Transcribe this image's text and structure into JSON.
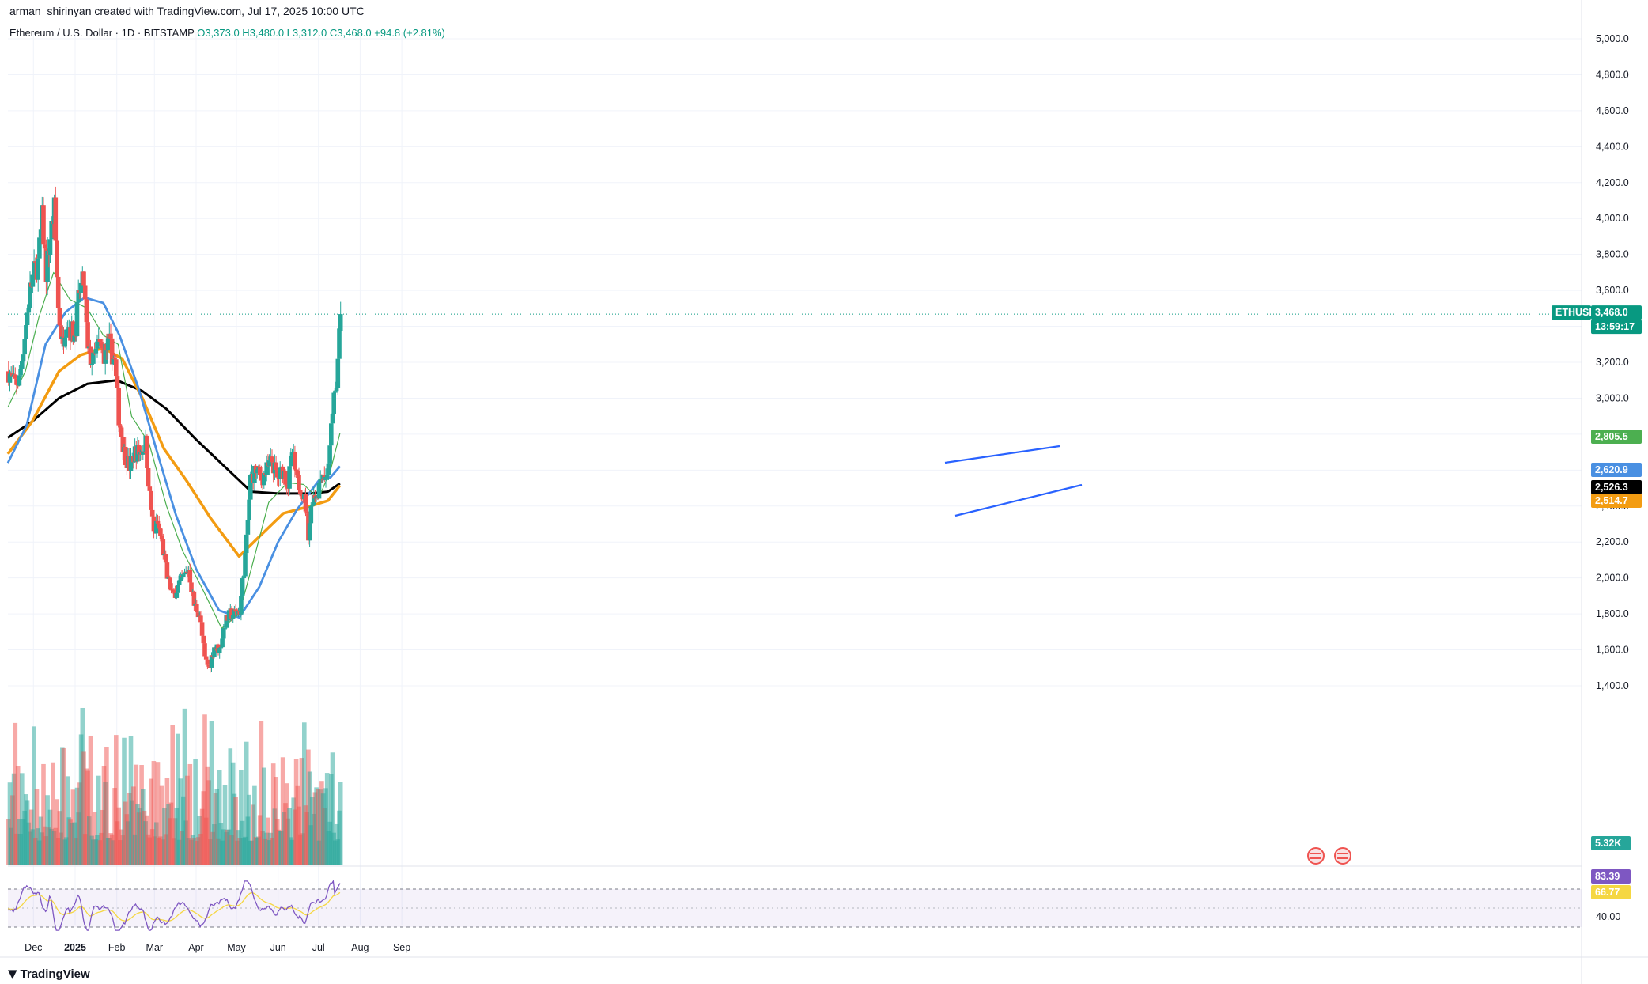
{
  "header": {
    "credit": "arman_shirinyan created with TradingView.com, Jul 17, 2025 10:00 UTC"
  },
  "legend": {
    "symbol": "Ethereum / U.S. Dollar · 1D · BITSTAMP",
    "ohlc": "O3,373.0  H3,480.0  L3,312.0  C3,468.0  +94.8 (+2.81%)"
  },
  "footer": {
    "logo_text": "TradingView"
  },
  "colors": {
    "up": "#26a69a",
    "down": "#ef5350",
    "ma_fast": "#4caf50",
    "ma_mid": "#4a90e2",
    "ma_slow": "#f39c12",
    "ma_long": "#000000",
    "rsi": "#7e57c2",
    "rsi_ma": "#f5d742"
  },
  "chart_data": {
    "type": "candlestick",
    "symbol": "ETHUSD",
    "y_ticks": [
      1400,
      1600,
      1800,
      2000,
      2200,
      2400,
      2600,
      2800,
      3000,
      3200,
      3400,
      3600,
      3800,
      4000,
      4200,
      4400,
      4600,
      4800,
      5000
    ],
    "y_tick_labels": [
      "1,400.0",
      "1,600.0",
      "1,800.0",
      "2,000.0",
      "2,200.0",
      "2,400.0",
      "2,600.0",
      "2,800.0",
      "3,000.0",
      "3,200.0",
      "3,400.0",
      "3,600.0",
      "3,800.0",
      "4,000.0",
      "4,200.0",
      "4,400.0",
      "4,600.0",
      "4,800.0",
      "5,000.0"
    ],
    "y_range": [
      1400,
      5000
    ],
    "x_labels": [
      "Dec",
      "2025",
      "Feb",
      "Mar",
      "Apr",
      "May",
      "Jun",
      "Jul",
      "Aug",
      "Sep"
    ],
    "current_price": {
      "symbol": "ETHUSD",
      "value": "3,468.0",
      "countdown": "13:59:17"
    },
    "ma_values": [
      {
        "label": "2,805.5",
        "value": 2805.5,
        "color": "#4caf50"
      },
      {
        "label": "2,620.9",
        "value": 2620.9,
        "color": "#4a90e2"
      },
      {
        "label": "2,526.3",
        "value": 2526.3,
        "color": "#000000"
      },
      {
        "label": "2,514.7",
        "value": 2514.7,
        "color": "#f39c12"
      }
    ],
    "volume_label": "5.32K",
    "rsi": {
      "value": "83.39",
      "ma_value": "66.77",
      "tick_label": "40.00",
      "upper": 70,
      "lower": 30
    },
    "price_path": [
      [
        "2024-11-12",
        3150
      ],
      [
        "2024-11-16",
        3080
      ],
      [
        "2024-11-20",
        3100
      ],
      [
        "2024-11-24",
        3350
      ],
      [
        "2024-11-28",
        3600
      ],
      [
        "2024-12-01",
        3700
      ],
      [
        "2024-12-04",
        3750
      ],
      [
        "2024-12-07",
        4000
      ],
      [
        "2024-12-10",
        3700
      ],
      [
        "2024-12-13",
        3900
      ],
      [
        "2024-12-16",
        4050
      ],
      [
        "2024-12-19",
        3500
      ],
      [
        "2024-12-22",
        3300
      ],
      [
        "2024-12-25",
        3450
      ],
      [
        "2024-12-28",
        3380
      ],
      [
        "2024-12-31",
        3350
      ],
      [
        "2025-01-04",
        3600
      ],
      [
        "2025-01-07",
        3650
      ],
      [
        "2025-01-10",
        3250
      ],
      [
        "2025-01-14",
        3200
      ],
      [
        "2025-01-18",
        3300
      ],
      [
        "2025-01-22",
        3250
      ],
      [
        "2025-01-26",
        3300
      ],
      [
        "2025-01-30",
        3200
      ],
      [
        "2025-02-02",
        2900
      ],
      [
        "2025-02-06",
        2700
      ],
      [
        "2025-02-10",
        2620
      ],
      [
        "2025-02-14",
        2700
      ],
      [
        "2025-02-18",
        2700
      ],
      [
        "2025-02-22",
        2750
      ],
      [
        "2025-02-25",
        2450
      ],
      [
        "2025-02-28",
        2250
      ],
      [
        "2025-03-03",
        2300
      ],
      [
        "2025-03-06",
        2200
      ],
      [
        "2025-03-10",
        2000
      ],
      [
        "2025-03-14",
        1900
      ],
      [
        "2025-03-18",
        1950
      ],
      [
        "2025-03-22",
        2000
      ],
      [
        "2025-03-26",
        2050
      ],
      [
        "2025-03-30",
        1850
      ],
      [
        "2025-04-03",
        1800
      ],
      [
        "2025-04-07",
        1550
      ],
      [
        "2025-04-10",
        1500
      ],
      [
        "2025-04-14",
        1620
      ],
      [
        "2025-04-18",
        1600
      ],
      [
        "2025-04-22",
        1750
      ],
      [
        "2025-04-26",
        1800
      ],
      [
        "2025-04-30",
        1800
      ],
      [
        "2025-05-03",
        1820
      ],
      [
        "2025-05-08",
        2200
      ],
      [
        "2025-05-11",
        2550
      ],
      [
        "2025-05-15",
        2600
      ],
      [
        "2025-05-19",
        2550
      ],
      [
        "2025-05-23",
        2600
      ],
      [
        "2025-05-27",
        2650
      ],
      [
        "2025-05-31",
        2550
      ],
      [
        "2025-06-04",
        2600
      ],
      [
        "2025-06-08",
        2520
      ],
      [
        "2025-06-11",
        2700
      ],
      [
        "2025-06-14",
        2550
      ],
      [
        "2025-06-18",
        2500
      ],
      [
        "2025-06-21",
        2400
      ],
      [
        "2025-06-23",
        2250
      ],
      [
        "2025-06-26",
        2450
      ],
      [
        "2025-06-30",
        2480
      ],
      [
        "2025-07-03",
        2600
      ],
      [
        "2025-07-06",
        2550
      ],
      [
        "2025-07-09",
        2700
      ],
      [
        "2025-07-11",
        2950
      ],
      [
        "2025-07-14",
        3050
      ],
      [
        "2025-07-16",
        3380
      ],
      [
        "2025-07-17",
        3468
      ]
    ],
    "ma_fast_path": [
      [
        "2024-11-12",
        2950
      ],
      [
        "2024-11-25",
        3150
      ],
      [
        "2024-12-05",
        3450
      ],
      [
        "2024-12-16",
        3700
      ],
      [
        "2024-12-28",
        3550
      ],
      [
        "2025-01-10",
        3500
      ],
      [
        "2025-01-22",
        3350
      ],
      [
        "2025-02-02",
        3300
      ],
      [
        "2025-02-12",
        2900
      ],
      [
        "2025-02-25",
        2750
      ],
      [
        "2025-03-10",
        2400
      ],
      [
        "2025-03-22",
        2150
      ],
      [
        "2025-04-05",
        1950
      ],
      [
        "2025-04-20",
        1720
      ],
      [
        "2025-05-03",
        1800
      ],
      [
        "2025-05-12",
        2050
      ],
      [
        "2025-05-25",
        2420
      ],
      [
        "2025-06-08",
        2530
      ],
      [
        "2025-06-20",
        2520
      ],
      [
        "2025-07-01",
        2440
      ],
      [
        "2025-07-10",
        2600
      ],
      [
        "2025-07-17",
        2805.5
      ]
    ],
    "ma_mid_path": [
      [
        "2024-11-12",
        2640
      ],
      [
        "2024-11-26",
        2850
      ],
      [
        "2024-12-10",
        3300
      ],
      [
        "2024-12-25",
        3480
      ],
      [
        "2025-01-08",
        3560
      ],
      [
        "2025-01-22",
        3530
      ],
      [
        "2025-02-03",
        3350
      ],
      [
        "2025-02-17",
        3060
      ],
      [
        "2025-03-03",
        2700
      ],
      [
        "2025-03-17",
        2350
      ],
      [
        "2025-04-01",
        2050
      ],
      [
        "2025-04-18",
        1820
      ],
      [
        "2025-05-03",
        1780
      ],
      [
        "2025-05-18",
        1950
      ],
      [
        "2025-06-01",
        2200
      ],
      [
        "2025-06-15",
        2380
      ],
      [
        "2025-07-01",
        2540
      ],
      [
        "2025-07-10",
        2560
      ],
      [
        "2025-07-17",
        2620.9
      ]
    ],
    "ma_slow_path": [
      [
        "2024-11-12",
        2690
      ],
      [
        "2024-11-30",
        2870
      ],
      [
        "2024-12-20",
        3150
      ],
      [
        "2025-01-05",
        3240
      ],
      [
        "2025-01-22",
        3280
      ],
      [
        "2025-02-05",
        3220
      ],
      [
        "2025-02-20",
        3000
      ],
      [
        "2025-03-08",
        2720
      ],
      [
        "2025-03-25",
        2540
      ],
      [
        "2025-04-12",
        2330
      ],
      [
        "2025-05-03",
        2120
      ],
      [
        "2025-05-18",
        2230
      ],
      [
        "2025-06-05",
        2360
      ],
      [
        "2025-06-25",
        2400
      ],
      [
        "2025-07-08",
        2430
      ],
      [
        "2025-07-17",
        2514.7
      ]
    ],
    "ma_long_path": [
      [
        "2024-11-12",
        2780
      ],
      [
        "2024-11-30",
        2870
      ],
      [
        "2024-12-20",
        3000
      ],
      [
        "2025-01-10",
        3080
      ],
      [
        "2025-02-01",
        3100
      ],
      [
        "2025-02-20",
        3040
      ],
      [
        "2025-03-10",
        2940
      ],
      [
        "2025-04-01",
        2770
      ],
      [
        "2025-04-25",
        2600
      ],
      [
        "2025-05-12",
        2480
      ],
      [
        "2025-06-01",
        2470
      ],
      [
        "2025-06-25",
        2470
      ],
      [
        "2025-07-08",
        2480
      ],
      [
        "2025-07-17",
        2526.3
      ]
    ]
  }
}
